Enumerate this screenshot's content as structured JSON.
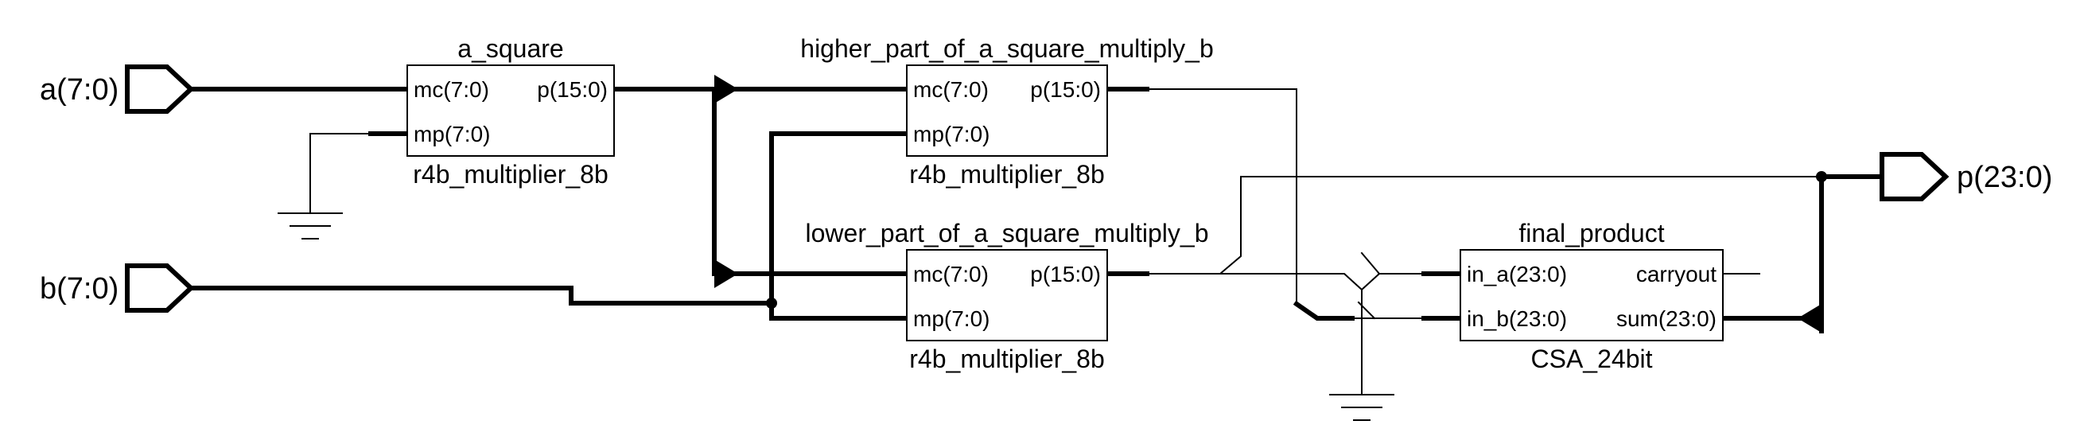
{
  "ports": {
    "a": "a(7:0)",
    "b": "b(7:0)",
    "p": "p(23:0)"
  },
  "blocks": {
    "a_square": {
      "instance": "a_square",
      "cell": "r4b_multiplier_8b",
      "pins": {
        "mc": "mc(7:0)",
        "mp": "mp(7:0)",
        "p": "p(15:0)"
      }
    },
    "higher": {
      "instance": "higher_part_of_a_square_multiply_b",
      "cell": "r4b_multiplier_8b",
      "pins": {
        "mc": "mc(7:0)",
        "mp": "mp(7:0)",
        "p": "p(15:0)"
      }
    },
    "lower": {
      "instance": "lower_part_of_a_square_multiply_b",
      "cell": "r4b_multiplier_8b",
      "pins": {
        "mc": "mc(7:0)",
        "mp": "mp(7:0)",
        "p": "p(15:0)"
      }
    },
    "final": {
      "instance": "final_product",
      "cell": "CSA_24bit",
      "pins": {
        "in_a": "in_a(23:0)",
        "in_b": "in_b(23:0)",
        "carryout": "carryout",
        "sum": "sum(23:0)"
      }
    }
  }
}
